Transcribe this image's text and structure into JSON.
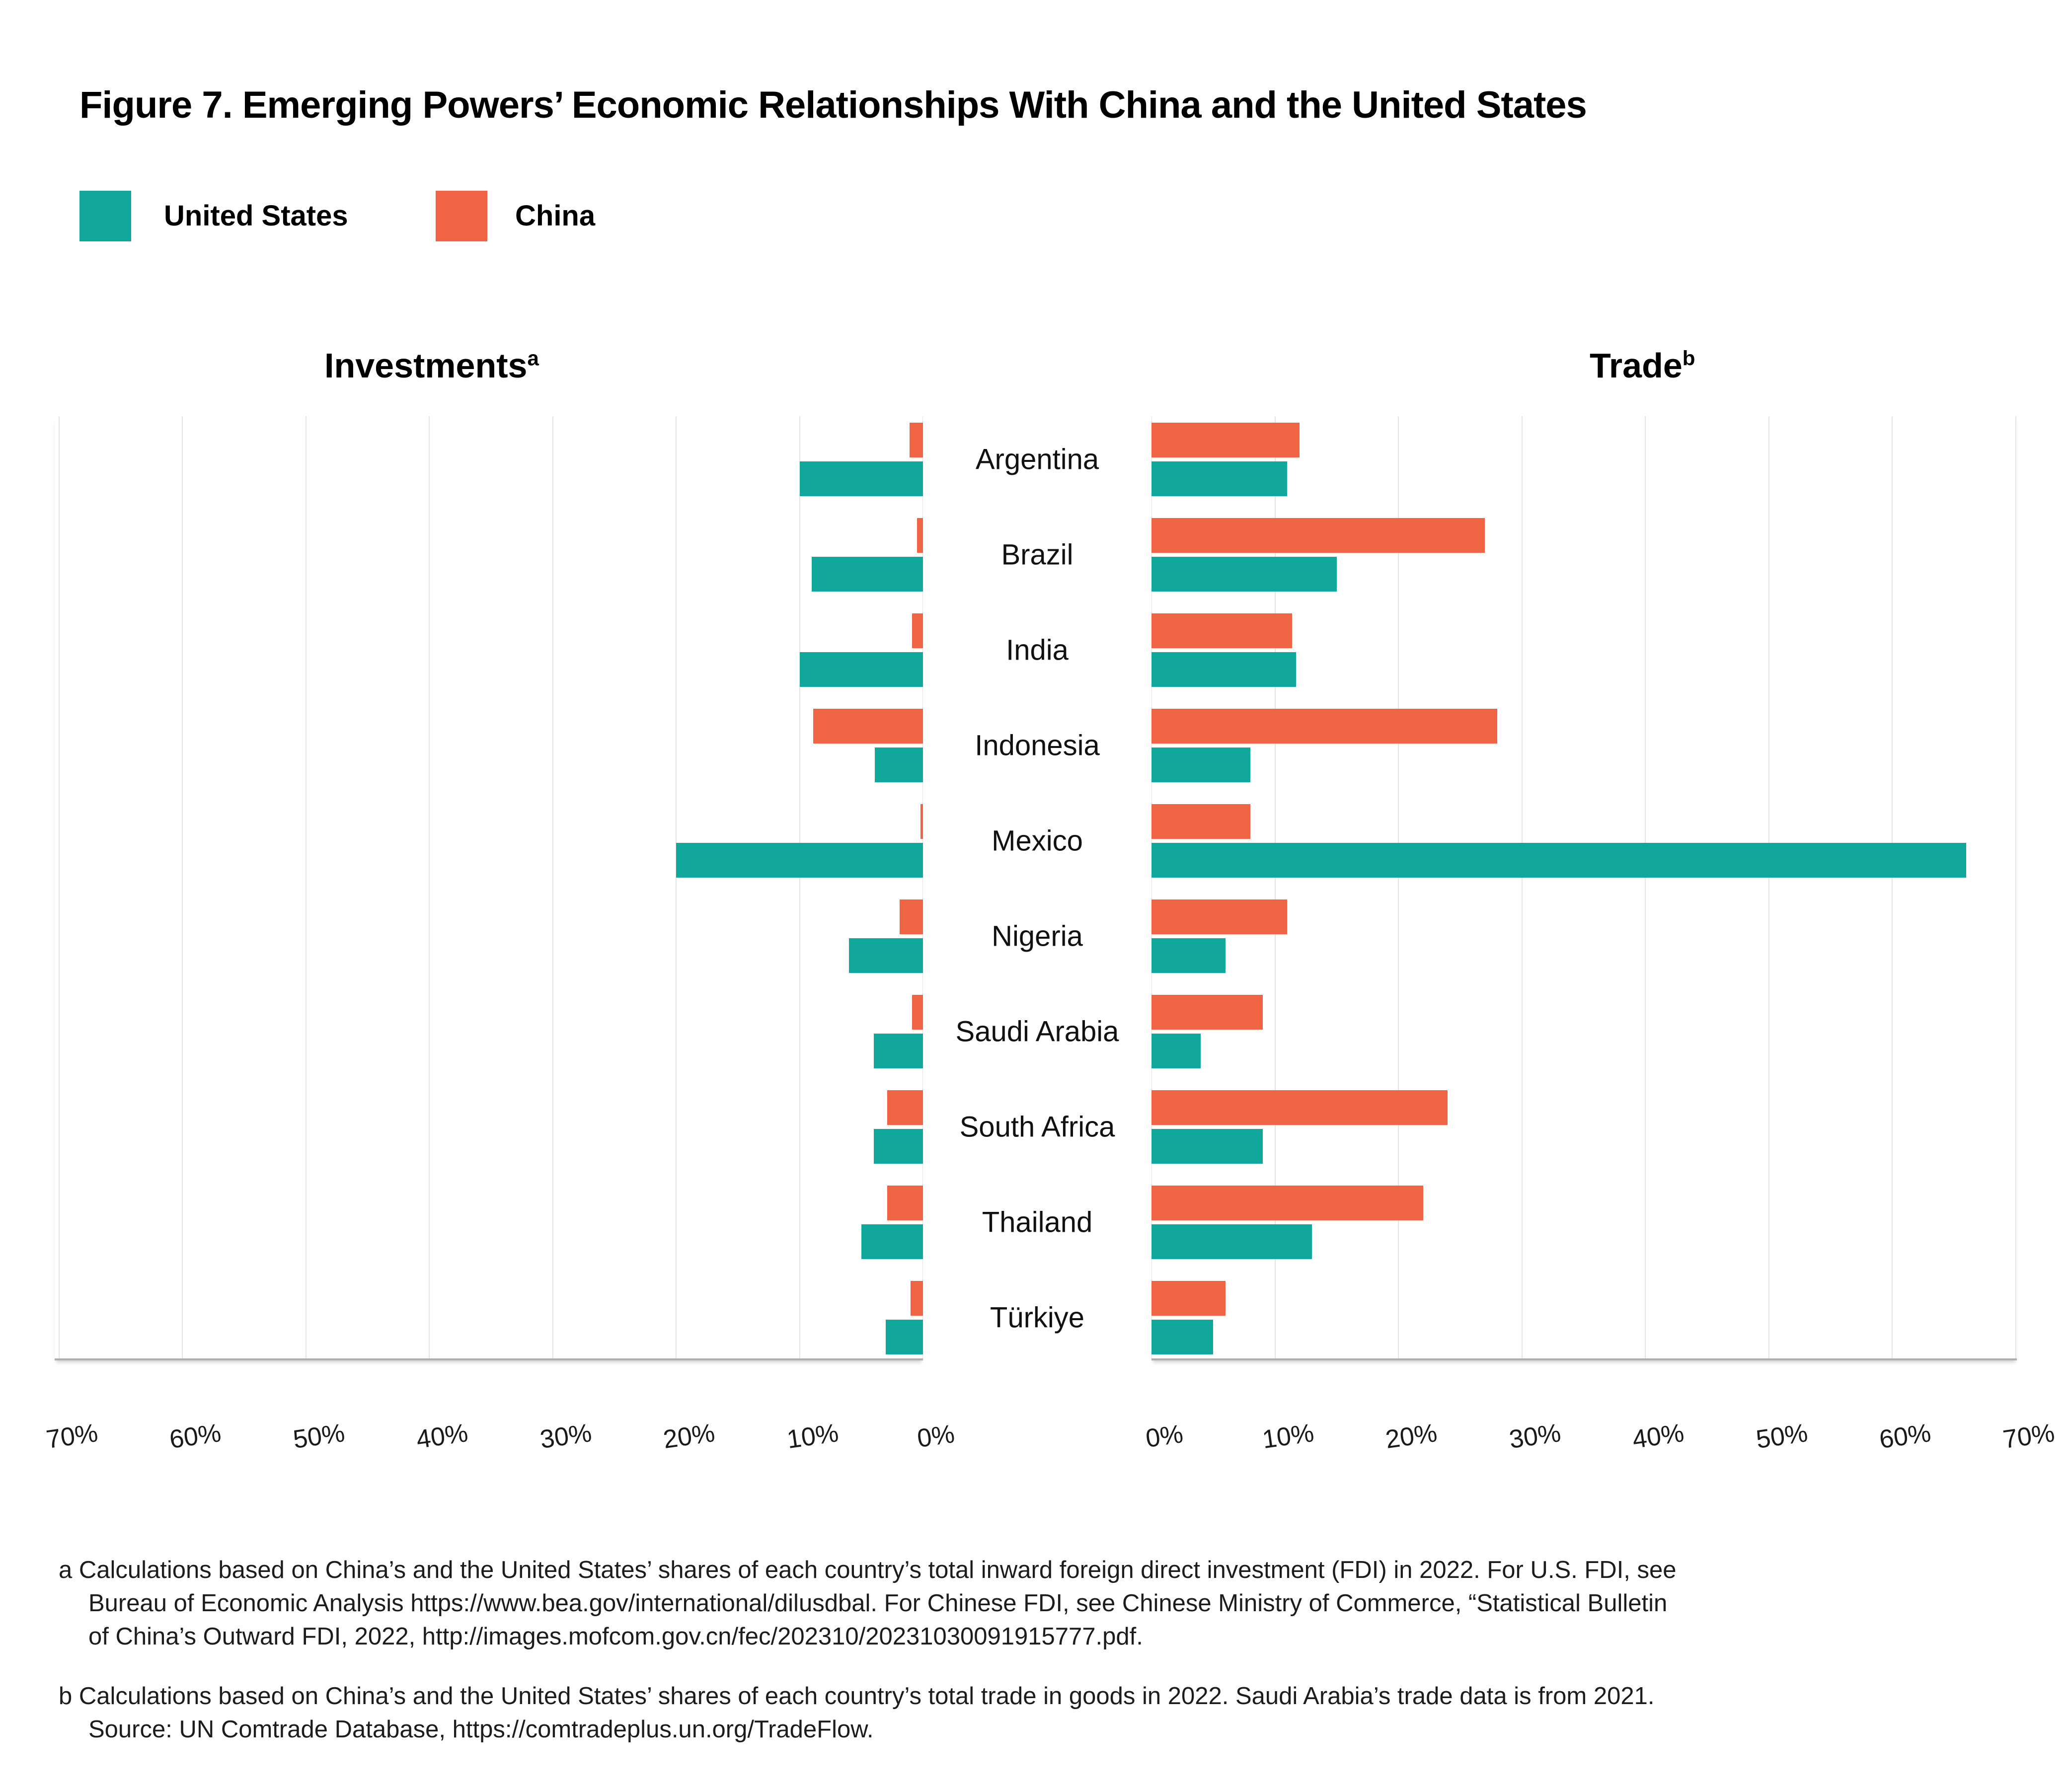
{
  "title": "Figure 7. Emerging Powers’ Economic Relationships With China and the United States",
  "legend": {
    "united_states": "United States",
    "china": "China"
  },
  "headers": {
    "investments": {
      "text": "Investments",
      "sup": "a"
    },
    "trade": {
      "text": "Trade",
      "sup": "b"
    }
  },
  "colors": {
    "teal": "#12a79b",
    "orange": "#f06444",
    "gridline": "#e4e4e4",
    "axis_line": "#aeaeae"
  },
  "chart_data": {
    "type": "bar",
    "subtype": "butterfly-horizontal",
    "panels": [
      "Investments",
      "Trade"
    ],
    "series_names": [
      "United States",
      "China"
    ],
    "categories": [
      "Argentina",
      "Brazil",
      "India",
      "Indonesia",
      "Mexico",
      "Nigeria",
      "Saudi Arabia",
      "South Africa",
      "Thailand",
      "Türkiye"
    ],
    "investments": {
      "united_states": [
        10,
        9,
        10,
        3.9,
        20,
        6,
        4,
        4,
        5,
        3
      ],
      "china": [
        1.1,
        0.5,
        0.9,
        8.9,
        0.2,
        1.9,
        0.9,
        2.9,
        2.9,
        1.0
      ]
    },
    "trade": {
      "united_states": [
        11,
        15,
        11.7,
        8,
        66,
        6,
        4,
        9,
        13,
        5
      ],
      "china": [
        12,
        27,
        11.4,
        28,
        8,
        11,
        9,
        24,
        22,
        6
      ]
    },
    "xlim": [
      0,
      70
    ],
    "grid_step": 10,
    "left_axis_ticks": [
      "70%",
      "60%",
      "50%",
      "40%",
      "30%",
      "20%",
      "10%",
      "0%"
    ],
    "right_axis_ticks": [
      "0%",
      "10%",
      "20%",
      "30%",
      "40%",
      "50%",
      "60%",
      "70%"
    ],
    "units": "percent",
    "legend_position": "top-left",
    "grid": true
  },
  "footnotes": {
    "a": {
      "lines": [
        "a Calculations based on China’s and the United States’ shares of each country’s total inward foreign direct investment (FDI) in 2022. For U.S. FDI, see",
        "Bureau of Economic Analysis https://www.bea.gov/international/dilusdbal. For Chinese FDI, see Chinese Ministry of Commerce, “Statistical Bulletin",
        "of China’s Outward FDI, 2022, http://images.mofcom.gov.cn/fec/202310/20231030091915777.pdf."
      ]
    },
    "b": {
      "lines": [
        "b Calculations based on China’s and the United States’ shares of each country’s total trade in goods in 2022. Saudi Arabia’s trade data is from 2021.",
        "Source: UN Comtrade Database, https://comtradeplus.un.org/TradeFlow."
      ]
    }
  }
}
